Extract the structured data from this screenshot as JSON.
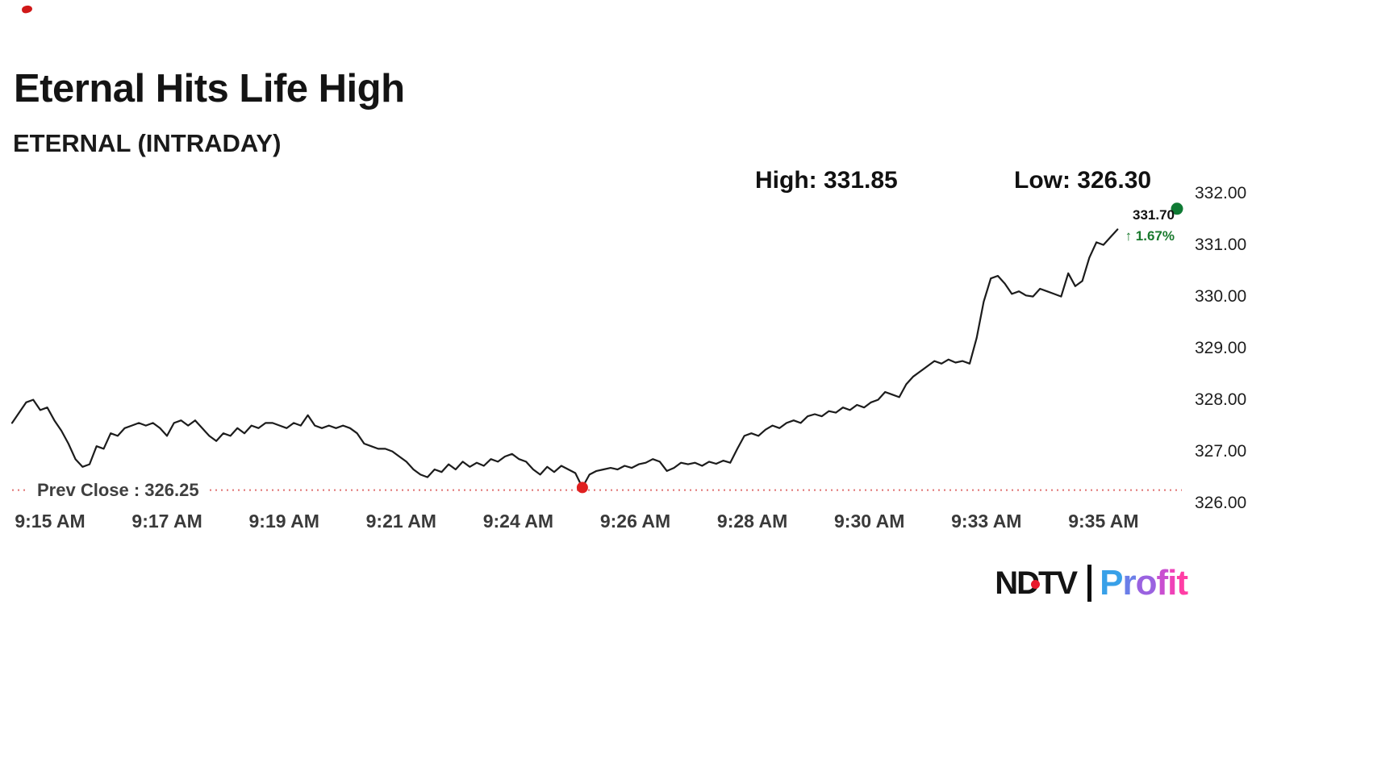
{
  "header": {
    "title": "Eternal Hits Life High",
    "subtitle": "ETERNAL (INTRADAY)"
  },
  "stats": {
    "high_label": "High: 331.85",
    "low_label": "Low: 326.30",
    "last_price": "331.70",
    "change_label": "↑ 1.67%",
    "prev_close_label": "Prev Close : 326.25"
  },
  "logo": {
    "ndtv": "NDTV",
    "profit": "Profit",
    "profit_colors": [
      "#38a0e8",
      "#6b7ee8",
      "#9a62e0",
      "#c94fd0",
      "#ef43b8",
      "#ff3ea5"
    ],
    "ndtv_color": "#141414",
    "dot_color": "#e8192c"
  },
  "colors": {
    "line": "#1c1c1c",
    "prev_close_line": "#e07070",
    "low_marker": "#e02020",
    "current_marker": "#0f7a34",
    "change_green": "#1a7a2e"
  },
  "chart_data": {
    "type": "line",
    "title": "ETERNAL (INTRADAY)",
    "x_ticks": [
      "9:15 AM",
      "9:17 AM",
      "9:19 AM",
      "9:21 AM",
      "9:24 AM",
      "9:26 AM",
      "9:28 AM",
      "9:30 AM",
      "9:33 AM",
      "9:35 AM"
    ],
    "y_ticks": [
      "332.00",
      "331.00",
      "330.00",
      "329.00",
      "328.00",
      "327.00",
      "326.00"
    ],
    "ylim": [
      325.9,
      332.15
    ],
    "grid": false,
    "legend": false,
    "high": 331.85,
    "low": 326.3,
    "last": 331.7,
    "prev_close": 326.25,
    "change_pct": 1.67,
    "values": [
      327.55,
      327.75,
      327.95,
      328.0,
      327.8,
      327.85,
      327.6,
      327.4,
      327.15,
      326.85,
      326.7,
      326.75,
      327.1,
      327.05,
      327.35,
      327.3,
      327.45,
      327.5,
      327.55,
      327.5,
      327.55,
      327.45,
      327.3,
      327.55,
      327.6,
      327.5,
      327.6,
      327.45,
      327.3,
      327.2,
      327.35,
      327.3,
      327.45,
      327.35,
      327.5,
      327.45,
      327.55,
      327.55,
      327.5,
      327.45,
      327.55,
      327.5,
      327.7,
      327.5,
      327.45,
      327.5,
      327.45,
      327.5,
      327.45,
      327.35,
      327.15,
      327.1,
      327.05,
      327.05,
      327.0,
      326.9,
      326.8,
      326.65,
      326.55,
      326.5,
      326.65,
      326.6,
      326.75,
      326.65,
      326.8,
      326.7,
      326.78,
      326.72,
      326.85,
      326.8,
      326.9,
      326.95,
      326.85,
      326.8,
      326.65,
      326.55,
      326.7,
      326.6,
      326.72,
      326.65,
      326.58,
      326.3,
      326.55,
      326.62,
      326.65,
      326.68,
      326.65,
      326.72,
      326.68,
      326.75,
      326.78,
      326.85,
      326.8,
      326.62,
      326.68,
      326.78,
      326.75,
      326.78,
      326.72,
      326.8,
      326.76,
      326.82,
      326.78,
      327.05,
      327.3,
      327.35,
      327.3,
      327.42,
      327.5,
      327.45,
      327.55,
      327.6,
      327.55,
      327.68,
      327.72,
      327.68,
      327.78,
      327.75,
      327.85,
      327.8,
      327.9,
      327.85,
      327.95,
      328.0,
      328.15,
      328.1,
      328.05,
      328.3,
      328.45,
      328.55,
      328.65,
      328.75,
      328.7,
      328.78,
      328.72,
      328.75,
      328.7,
      329.2,
      329.9,
      330.35,
      330.4,
      330.25,
      330.05,
      330.1,
      330.02,
      330.0,
      330.15,
      330.1,
      330.05,
      330.0,
      330.45,
      330.2,
      330.3,
      330.75,
      331.05,
      331.0,
      331.15,
      331.3
    ]
  }
}
